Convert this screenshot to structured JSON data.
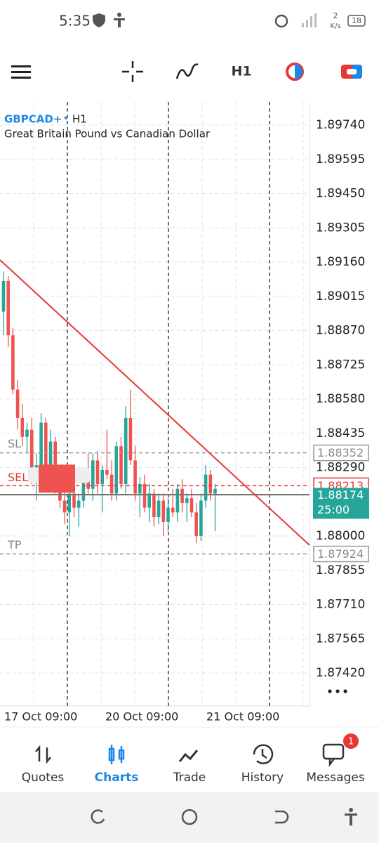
{
  "status_bar": {
    "time": "5:35",
    "net_speed": "2",
    "net_unit": "K/s",
    "battery": "18"
  },
  "toolbar": {
    "timeframe": "H1"
  },
  "chart": {
    "symbol": "GBPCAD+",
    "timeframe": "H1",
    "description": "Great Britain Pound vs Canadian Dollar",
    "price_ticks": [
      {
        "value": 1.8974,
        "label": "1.89740"
      },
      {
        "value": 1.89595,
        "label": "1.89595"
      },
      {
        "value": 1.8945,
        "label": "1.89450"
      },
      {
        "value": 1.89305,
        "label": "1.89305"
      },
      {
        "value": 1.8916,
        "label": "1.89160"
      },
      {
        "value": 1.89015,
        "label": "1.89015"
      },
      {
        "value": 1.8887,
        "label": "1.88870"
      },
      {
        "value": 1.88725,
        "label": "1.88725"
      },
      {
        "value": 1.8858,
        "label": "1.88580"
      },
      {
        "value": 1.88435,
        "label": "1.88435"
      },
      {
        "value": 1.8829,
        "label": "1.88290"
      },
      {
        "value": 1.88,
        "label": "1.88000"
      },
      {
        "value": 1.87855,
        "label": "1.87855"
      },
      {
        "value": 1.8771,
        "label": "1.87710"
      },
      {
        "value": 1.87565,
        "label": "1.87565"
      },
      {
        "value": 1.8742,
        "label": "1.87420"
      }
    ],
    "date_labels": [
      "17 Oct 09:00",
      "20 Oct 09:00",
      "21 Oct 09:00"
    ],
    "levels": {
      "sl": {
        "label": "SL",
        "price": 1.88352
      },
      "sell": {
        "label": "SELL",
        "price": 1.88213
      },
      "bid": {
        "price": 1.88174,
        "countdown": "25:00"
      },
      "tp": {
        "label": "TP",
        "price": 1.87924
      }
    },
    "candles": [
      {
        "open": 1.8895,
        "high": 1.8912,
        "low": 1.8885,
        "close": 1.8908
      },
      {
        "open": 1.8908,
        "high": 1.891,
        "low": 1.888,
        "close": 1.8885
      },
      {
        "open": 1.8885,
        "high": 1.8888,
        "low": 1.886,
        "close": 1.8862
      },
      {
        "open": 1.8862,
        "high": 1.8866,
        "low": 1.8845,
        "close": 1.885
      },
      {
        "open": 1.885,
        "high": 1.8856,
        "low": 1.8838,
        "close": 1.8842
      },
      {
        "open": 1.8842,
        "high": 1.8848,
        "low": 1.8835,
        "close": 1.8845
      },
      {
        "open": 1.8845,
        "high": 1.885,
        "low": 1.8822,
        "close": 1.8825
      },
      {
        "open": 1.8825,
        "high": 1.8835,
        "low": 1.8815,
        "close": 1.883
      },
      {
        "open": 1.883,
        "high": 1.8852,
        "low": 1.8825,
        "close": 1.8848
      },
      {
        "open": 1.8848,
        "high": 1.885,
        "low": 1.8826,
        "close": 1.8828
      },
      {
        "open": 1.8828,
        "high": 1.8845,
        "low": 1.882,
        "close": 1.884
      },
      {
        "open": 1.884,
        "high": 1.8842,
        "low": 1.8818,
        "close": 1.8822
      },
      {
        "open": 1.8822,
        "high": 1.883,
        "low": 1.8812,
        "close": 1.8815
      },
      {
        "open": 1.8815,
        "high": 1.8825,
        "low": 1.8805,
        "close": 1.881
      },
      {
        "open": 1.881,
        "high": 1.882,
        "low": 1.88,
        "close": 1.8818
      },
      {
        "open": 1.8818,
        "high": 1.8822,
        "low": 1.8808,
        "close": 1.8812
      },
      {
        "open": 1.8812,
        "high": 1.8818,
        "low": 1.8804,
        "close": 1.8815
      },
      {
        "open": 1.8815,
        "high": 1.8828,
        "low": 1.8812,
        "close": 1.8825
      },
      {
        "open": 1.8825,
        "high": 1.8835,
        "low": 1.8818,
        "close": 1.882
      },
      {
        "open": 1.882,
        "high": 1.8835,
        "low": 1.8815,
        "close": 1.8832
      },
      {
        "open": 1.8832,
        "high": 1.8836,
        "low": 1.8818,
        "close": 1.8822
      },
      {
        "open": 1.8822,
        "high": 1.883,
        "low": 1.881,
        "close": 1.8828
      },
      {
        "open": 1.8828,
        "high": 1.8845,
        "low": 1.8824,
        "close": 1.8826
      },
      {
        "open": 1.8826,
        "high": 1.8832,
        "low": 1.8815,
        "close": 1.8818
      },
      {
        "open": 1.8818,
        "high": 1.884,
        "low": 1.8815,
        "close": 1.8838
      },
      {
        "open": 1.8838,
        "high": 1.8842,
        "low": 1.882,
        "close": 1.8822
      },
      {
        "open": 1.8822,
        "high": 1.8855,
        "low": 1.8818,
        "close": 1.885
      },
      {
        "open": 1.885,
        "high": 1.8862,
        "low": 1.883,
        "close": 1.8832
      },
      {
        "open": 1.8832,
        "high": 1.8838,
        "low": 1.8815,
        "close": 1.8818
      },
      {
        "open": 1.8818,
        "high": 1.8825,
        "low": 1.8808,
        "close": 1.8822
      },
      {
        "open": 1.8822,
        "high": 1.8826,
        "low": 1.881,
        "close": 1.8812
      },
      {
        "open": 1.8812,
        "high": 1.8822,
        "low": 1.8806,
        "close": 1.8818
      },
      {
        "open": 1.8818,
        "high": 1.882,
        "low": 1.8804,
        "close": 1.8808
      },
      {
        "open": 1.8808,
        "high": 1.8818,
        "low": 1.8805,
        "close": 1.8815
      },
      {
        "open": 1.8815,
        "high": 1.8818,
        "low": 1.88,
        "close": 1.8806
      },
      {
        "open": 1.8806,
        "high": 1.8816,
        "low": 1.8802,
        "close": 1.8812
      },
      {
        "open": 1.8812,
        "high": 1.882,
        "low": 1.8808,
        "close": 1.881
      },
      {
        "open": 1.881,
        "high": 1.8822,
        "low": 1.8806,
        "close": 1.882
      },
      {
        "open": 1.882,
        "high": 1.8824,
        "low": 1.881,
        "close": 1.8814
      },
      {
        "open": 1.8814,
        "high": 1.8818,
        "low": 1.8806,
        "close": 1.8816
      },
      {
        "open": 1.8816,
        "high": 1.882,
        "low": 1.8808,
        "close": 1.881
      },
      {
        "open": 1.881,
        "high": 1.8814,
        "low": 1.8797,
        "close": 1.88
      },
      {
        "open": 1.88,
        "high": 1.8818,
        "low": 1.8798,
        "close": 1.8815
      },
      {
        "open": 1.8815,
        "high": 1.883,
        "low": 1.8812,
        "close": 1.8826
      },
      {
        "open": 1.8826,
        "high": 1.8828,
        "low": 1.8815,
        "close": 1.8818
      },
      {
        "open": 1.8818,
        "high": 1.8822,
        "low": 1.8802,
        "close": 1.882
      }
    ]
  },
  "nav": {
    "items": [
      "Quotes",
      "Charts",
      "Trade",
      "History",
      "Messages"
    ],
    "messages_badge": "1"
  }
}
